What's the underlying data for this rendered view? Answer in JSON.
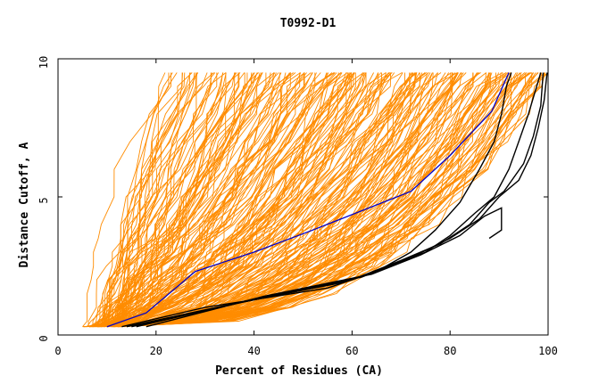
{
  "chart_data": {
    "type": "line",
    "title": "T0992-D1",
    "xlabel": "Percent of Residues (CA)",
    "ylabel": "Distance Cutoff, A",
    "xlim": [
      0,
      100
    ],
    "ylim": [
      0,
      10
    ],
    "xticks": [
      0,
      20,
      40,
      60,
      80,
      100
    ],
    "yticks": [
      0,
      5,
      10
    ],
    "grid": false,
    "colors": {
      "models": "#ff8c00",
      "highlight": "#0000cc",
      "best": "#000000"
    },
    "curve_cutoffs": [
      0.3,
      0.5,
      1,
      1.5,
      2,
      2.5,
      3,
      3.5,
      4,
      5,
      6,
      7,
      8,
      9,
      9.5
    ],
    "blue_curve": {
      "x": [
        10,
        18,
        28,
        40,
        52,
        62,
        72,
        80,
        88.5,
        92
      ],
      "y": [
        0.3,
        0.8,
        2.3,
        3.0,
        3.8,
        4.5,
        5.2,
        6.5,
        8.1,
        9.5
      ]
    },
    "black_curves": [
      {
        "x": [
          13,
          30,
          55,
          65,
          72,
          77,
          82,
          86,
          89,
          90.5,
          91.5,
          92.5
        ],
        "y": [
          0.3,
          1.0,
          1.7,
          2.3,
          3.0,
          3.8,
          4.8,
          6.0,
          7.0,
          8.0,
          9.0,
          9.5
        ]
      },
      {
        "x": [
          14,
          35,
          58,
          68,
          75,
          80,
          85,
          89,
          92,
          94,
          96,
          98.5
        ],
        "y": [
          0.3,
          1.1,
          1.9,
          2.5,
          3.0,
          3.6,
          4.4,
          5.0,
          6.0,
          7.0,
          8.0,
          9.5
        ]
      },
      {
        "x": [
          15,
          38,
          60,
          70,
          78,
          84,
          88,
          91,
          95,
          97,
          98.5,
          99
        ],
        "y": [
          0.3,
          1.2,
          2.0,
          2.7,
          3.3,
          4.0,
          4.8,
          5.2,
          6.2,
          7.2,
          8.3,
          9.5
        ]
      },
      {
        "x": [
          16,
          40,
          62,
          72,
          80,
          86,
          90,
          94,
          96.5,
          98,
          99.2,
          99.8
        ],
        "y": [
          0.3,
          1.3,
          2.1,
          2.8,
          3.5,
          4.2,
          5.0,
          5.6,
          6.5,
          7.5,
          8.5,
          9.5
        ]
      },
      {
        "x": [
          18,
          42,
          64,
          74,
          82,
          87,
          90.5,
          90.5,
          88
        ],
        "y": [
          0.3,
          1.4,
          2.2,
          2.9,
          3.6,
          4.3,
          4.6,
          3.8,
          3.5
        ]
      }
    ]
  }
}
